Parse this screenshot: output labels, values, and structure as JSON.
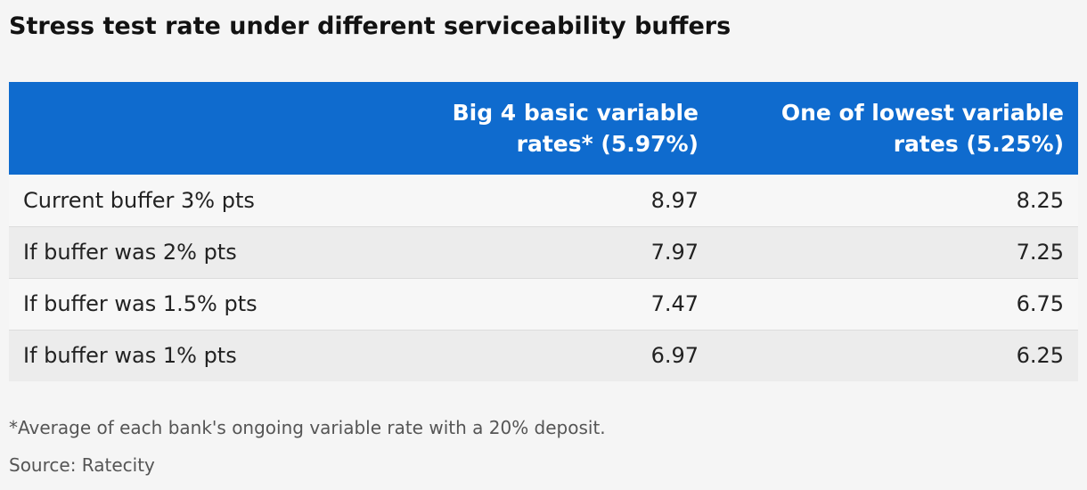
{
  "title": "Stress test rate under different serviceability buffers",
  "colors": {
    "header_bg": "#0f6bce",
    "header_text": "#ffffff",
    "row_light": "#f7f7f7",
    "row_dark": "#ececec",
    "page_bg": "#f5f5f5"
  },
  "table": {
    "headers": [
      "",
      "Big 4 basic variable rates* (5.97%)",
      "One of lowest variable rates (5.25%)"
    ],
    "rows": [
      [
        "Current buffer 3% pts",
        "8.97",
        "8.25"
      ],
      [
        "If buffer was 2% pts",
        "7.97",
        "7.25"
      ],
      [
        "If buffer was 1.5% pts",
        "7.47",
        "6.75"
      ],
      [
        "If buffer was 1% pts",
        "6.97",
        "6.25"
      ]
    ]
  },
  "chart_data": {
    "type": "table",
    "title": "Stress test rate under different serviceability buffers",
    "columns": [
      "",
      "Big 4 basic variable rates* (5.97%)",
      "One of lowest variable rates (5.25%)"
    ],
    "rows": [
      [
        "Current buffer 3% pts",
        8.97,
        8.25
      ],
      [
        "If buffer was 2% pts",
        7.97,
        7.25
      ],
      [
        "If buffer was 1.5% pts",
        7.47,
        6.75
      ],
      [
        "If buffer was 1% pts",
        6.97,
        6.25
      ]
    ]
  },
  "footnote": "*Average of each bank's ongoing variable rate with a 20% deposit.",
  "source": "Source: Ratecity"
}
